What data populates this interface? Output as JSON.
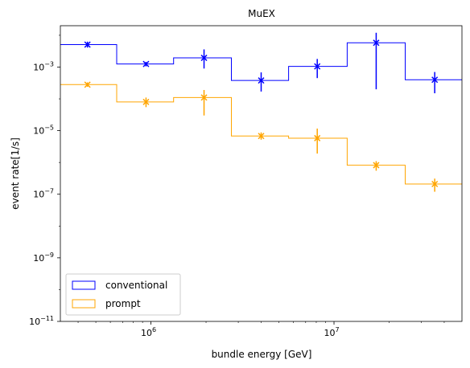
{
  "chart_data": {
    "type": "line",
    "title": "MuEX",
    "xlabel": "bundle energy [GeV]",
    "ylabel": "event rate[1/s]",
    "xscale": "log",
    "yscale": "log",
    "xlim": [
      320000,
      50000000
    ],
    "ylim": [
      1e-11,
      0.02
    ],
    "x_tick_labels": [
      {
        "value": 1000000,
        "base": "10",
        "exp": "6"
      },
      {
        "value": 10000000,
        "base": "10",
        "exp": "7"
      }
    ],
    "y_tick_labels": [
      {
        "value": 1e-11,
        "base": "10",
        "exp": "−11"
      },
      {
        "value": 1e-09,
        "base": "10",
        "exp": "−9"
      },
      {
        "value": 1e-07,
        "base": "10",
        "exp": "−7"
      },
      {
        "value": 1e-05,
        "base": "10",
        "exp": "−5"
      },
      {
        "value": 0.001,
        "base": "10",
        "exp": "−3"
      }
    ],
    "bin_edges": [
      320000,
      650000,
      1330000,
      2750000,
      5650000,
      11800000,
      24500000,
      50000000
    ],
    "series": [
      {
        "name": "conventional",
        "color": "#0000ff",
        "style": "step",
        "values": [
          0.0051,
          0.00125,
          0.00195,
          0.00038,
          0.00105,
          0.0058,
          0.0004
        ],
        "points": [
          {
            "x": 450000,
            "y": 0.0051,
            "ylo": 0.0041,
            "yhi": 0.0063
          },
          {
            "x": 940000,
            "y": 0.00125,
            "ylo": 0.00105,
            "yhi": 0.00145
          },
          {
            "x": 1950000,
            "y": 0.00195,
            "ylo": 0.0009,
            "yhi": 0.0036
          },
          {
            "x": 4000000,
            "y": 0.00038,
            "ylo": 0.00017,
            "yhi": 0.00068
          },
          {
            "x": 8100000,
            "y": 0.00105,
            "ylo": 0.00045,
            "yhi": 0.0018
          },
          {
            "x": 17000000,
            "y": 0.0058,
            "ylo": 0.0002,
            "yhi": 0.012
          },
          {
            "x": 35500000,
            "y": 0.0004,
            "ylo": 0.00015,
            "yhi": 0.0007
          }
        ]
      },
      {
        "name": "prompt",
        "color": "#ffa500",
        "style": "step",
        "values": [
          0.00028,
          8e-05,
          0.00011,
          6.8e-06,
          5.8e-06,
          8.2e-07,
          2.1e-07
        ],
        "points": [
          {
            "x": 450000,
            "y": 0.00028,
            "ylo": 0.00024,
            "yhi": 0.00033
          },
          {
            "x": 940000,
            "y": 8e-05,
            "ylo": 5.5e-05,
            "yhi": 0.00011
          },
          {
            "x": 1950000,
            "y": 0.00011,
            "ylo": 3e-05,
            "yhi": 0.00019
          },
          {
            "x": 4000000,
            "y": 6.8e-06,
            "ylo": 5.2e-06,
            "yhi": 8.8e-06
          },
          {
            "x": 8100000,
            "y": 5.8e-06,
            "ylo": 1.9e-06,
            "yhi": 1.16e-05
          },
          {
            "x": 17000000,
            "y": 8.2e-07,
            "ylo": 5.5e-07,
            "yhi": 1.1e-06
          },
          {
            "x": 35500000,
            "y": 2.1e-07,
            "ylo": 1.2e-07,
            "yhi": 3.1e-07
          }
        ]
      }
    ],
    "legend": {
      "position": "lower left",
      "entries": [
        "conventional",
        "prompt"
      ]
    },
    "grid": false
  }
}
